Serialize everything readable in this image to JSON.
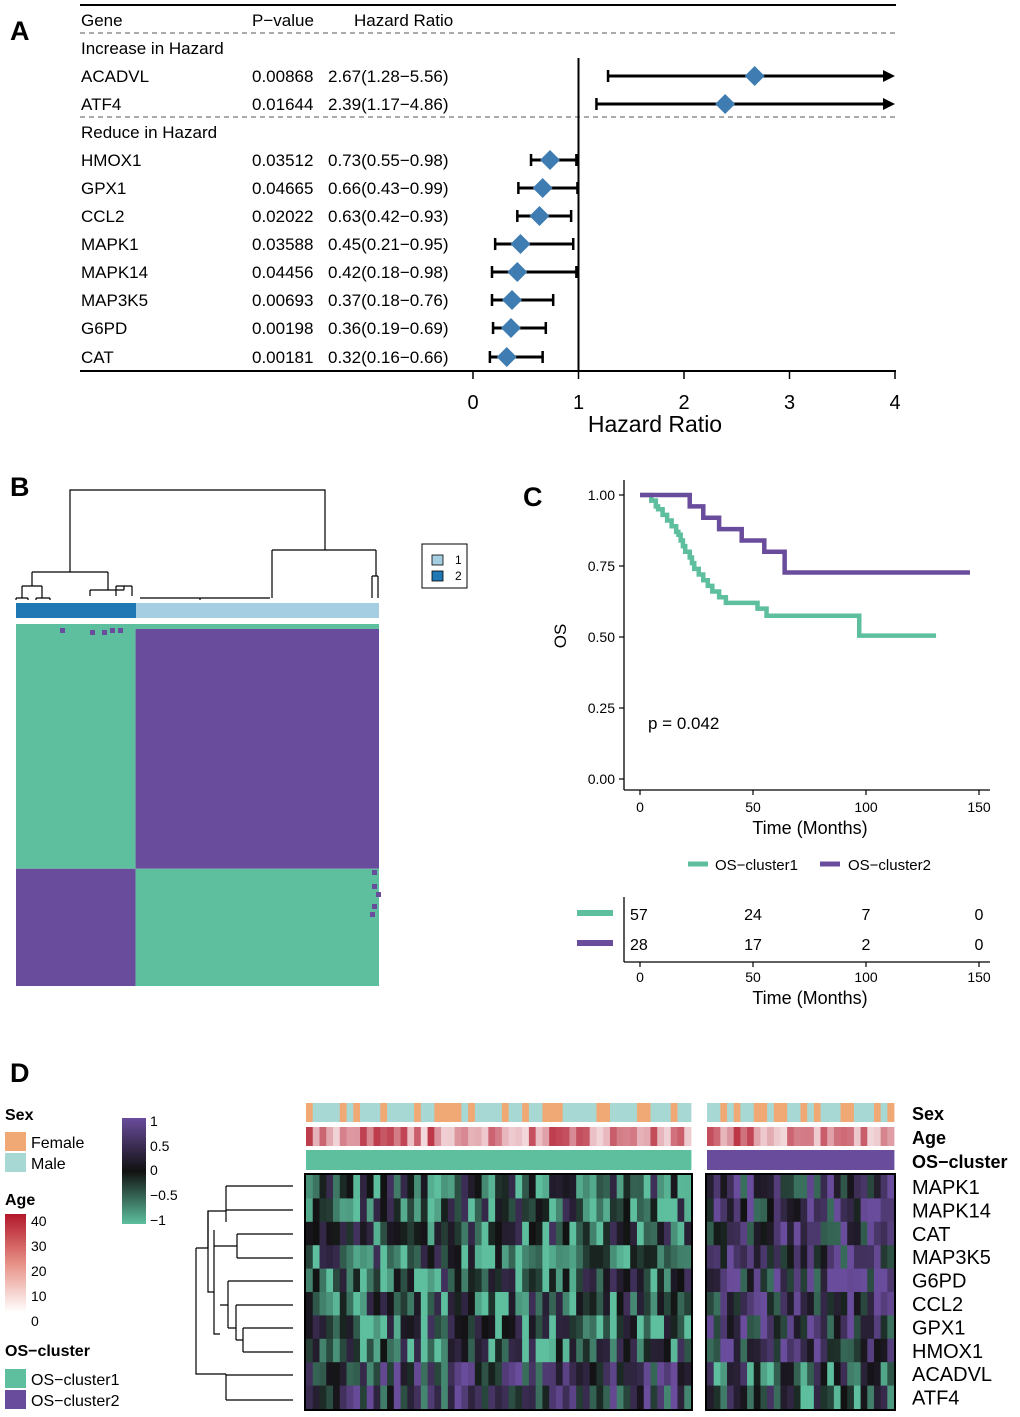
{
  "panels": {
    "a": "A",
    "b": "B",
    "c": "C",
    "d": "D"
  },
  "colors": {
    "diamond": "#3e7cb1",
    "teal": "#5dbf9e",
    "purple": "#6a4c9c",
    "female": "#f0a875",
    "male": "#a8d8d4",
    "cluster1_legend": "#a6cee3",
    "cluster2_legend": "#1f78b4"
  },
  "chart_data": [
    {
      "id": "forest",
      "type": "forest",
      "headers": {
        "gene": "Gene",
        "pvalue": "P−value",
        "hr": "Hazard Ratio"
      },
      "groups": [
        {
          "label": "Increase in Hazard",
          "rows": [
            {
              "gene": "ACADVL",
              "p": "0.00868",
              "hr_text": "2.67(1.28−5.56)",
              "hr": 2.67,
              "lo": 1.28,
              "hi": 5.56
            },
            {
              "gene": "ATF4",
              "p": "0.01644",
              "hr_text": "2.39(1.17−4.86)",
              "hr": 2.39,
              "lo": 1.17,
              "hi": 4.86
            }
          ]
        },
        {
          "label": "Reduce in Hazard",
          "rows": [
            {
              "gene": "HMOX1",
              "p": "0.03512",
              "hr_text": "0.73(0.55−0.98)",
              "hr": 0.73,
              "lo": 0.55,
              "hi": 0.98
            },
            {
              "gene": "GPX1",
              "p": "0.04665",
              "hr_text": "0.66(0.43−0.99)",
              "hr": 0.66,
              "lo": 0.43,
              "hi": 0.99
            },
            {
              "gene": "CCL2",
              "p": "0.02022",
              "hr_text": "0.63(0.42−0.93)",
              "hr": 0.63,
              "lo": 0.42,
              "hi": 0.93
            },
            {
              "gene": "MAPK1",
              "p": "0.03588",
              "hr_text": "0.45(0.21−0.95)",
              "hr": 0.45,
              "lo": 0.21,
              "hi": 0.95
            },
            {
              "gene": "MAPK14",
              "p": "0.04456",
              "hr_text": "0.42(0.18−0.98)",
              "hr": 0.42,
              "lo": 0.18,
              "hi": 0.98
            },
            {
              "gene": "MAP3K5",
              "p": "0.00693",
              "hr_text": "0.37(0.18−0.76)",
              "hr": 0.37,
              "lo": 0.18,
              "hi": 0.76
            },
            {
              "gene": "G6PD",
              "p": "0.00198",
              "hr_text": "0.36(0.19−0.69)",
              "hr": 0.36,
              "lo": 0.19,
              "hi": 0.69
            },
            {
              "gene": "CAT",
              "p": "0.00181",
              "hr_text": "0.32(0.16−0.66)",
              "hr": 0.32,
              "lo": 0.16,
              "hi": 0.66
            }
          ]
        }
      ],
      "xlim": [
        0,
        4
      ],
      "xticks": [
        0,
        1,
        2,
        3,
        4
      ],
      "ref_line": 1,
      "xlabel": "Hazard Ratio"
    },
    {
      "id": "consensus",
      "type": "heatmap",
      "legend": [
        "1",
        "2"
      ],
      "clusters": [
        {
          "name": "2",
          "count": 28
        },
        {
          "name": "1",
          "count": 57
        }
      ]
    },
    {
      "id": "km",
      "type": "line",
      "ylabel": "OS",
      "xlabel": "Time (Months)",
      "xlim": [
        0,
        150
      ],
      "ylim": [
        0,
        1
      ],
      "xticks": [
        0,
        50,
        100,
        150
      ],
      "yticks": [
        "0.00",
        "0.25",
        "0.50",
        "0.75",
        "1.00"
      ],
      "pvalue": "p = 0.042",
      "series": [
        {
          "name": "OS−cluster1",
          "steps": [
            [
              0,
              1.0
            ],
            [
              5,
              0.98
            ],
            [
              7,
              0.96
            ],
            [
              8,
              0.95
            ],
            [
              10,
              0.93
            ],
            [
              12,
              0.91
            ],
            [
              14,
              0.89
            ],
            [
              16,
              0.87
            ],
            [
              17,
              0.86
            ],
            [
              18,
              0.84
            ],
            [
              19,
              0.82
            ],
            [
              20,
              0.8
            ],
            [
              22,
              0.78
            ],
            [
              23,
              0.76
            ],
            [
              24,
              0.74
            ],
            [
              26,
              0.72
            ],
            [
              28,
              0.7
            ],
            [
              30,
              0.68
            ],
            [
              32,
              0.66
            ],
            [
              35,
              0.64
            ],
            [
              38,
              0.62
            ],
            [
              52,
              0.6
            ],
            [
              56,
              0.575
            ],
            [
              97,
              0.505
            ],
            [
              131,
              0.505
            ]
          ]
        },
        {
          "name": "OS−cluster2",
          "steps": [
            [
              0,
              1.0
            ],
            [
              22,
              0.96
            ],
            [
              28,
              0.92
            ],
            [
              35,
              0.88
            ],
            [
              45,
              0.84
            ],
            [
              55,
              0.8
            ],
            [
              64,
              0.727
            ],
            [
              146,
              0.727
            ]
          ]
        }
      ],
      "risk_table": {
        "times": [
          "0",
          "50",
          "100",
          "150"
        ],
        "rows": [
          {
            "name": "OS−cluster1",
            "counts": [
              "57",
              "24",
              "7",
              "0"
            ]
          },
          {
            "name": "OS−cluster2",
            "counts": [
              "28",
              "17",
              "2",
              "0"
            ]
          }
        ]
      }
    },
    {
      "id": "expression",
      "type": "heatmap",
      "genes": [
        "MAPK1",
        "MAPK14",
        "CAT",
        "MAP3K5",
        "G6PD",
        "CCL2",
        "GPX1",
        "HMOX1",
        "ACADVL",
        "ATF4"
      ],
      "annotation_labels": [
        "Sex",
        "Age",
        "OS−cluster"
      ],
      "legend": {
        "sex_title": "Sex",
        "sex_levels": [
          "Female",
          "Male"
        ],
        "age_title": "Age",
        "age_ticks": [
          "40",
          "30",
          "20",
          "10",
          "0"
        ],
        "cluster_title": "OS−cluster",
        "cluster_levels": [
          "OS−cluster1",
          "OS−cluster2"
        ],
        "scale_ticks": [
          "1",
          "0.5",
          "0",
          "−0.5",
          "−1"
        ]
      },
      "clusters": [
        {
          "name": "OS−cluster1",
          "samples": 57
        },
        {
          "name": "OS−cluster2",
          "samples": 28
        }
      ]
    }
  ]
}
